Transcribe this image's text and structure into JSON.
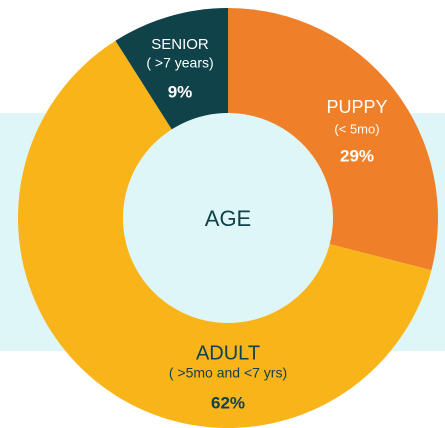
{
  "chart_data": {
    "type": "donut",
    "center_label": "AGE",
    "categories": [
      "PUPPY",
      "ADULT",
      "SENIOR"
    ],
    "sublabels": [
      "(< 5mo)",
      "( >5mo and <7 yrs)",
      "( >7 years)"
    ],
    "values": [
      29,
      62,
      9
    ],
    "value_labels": [
      "29%",
      "62%",
      "9%"
    ],
    "colors": [
      "#f07f2a",
      "#f9b41a",
      "#0f4249"
    ]
  }
}
